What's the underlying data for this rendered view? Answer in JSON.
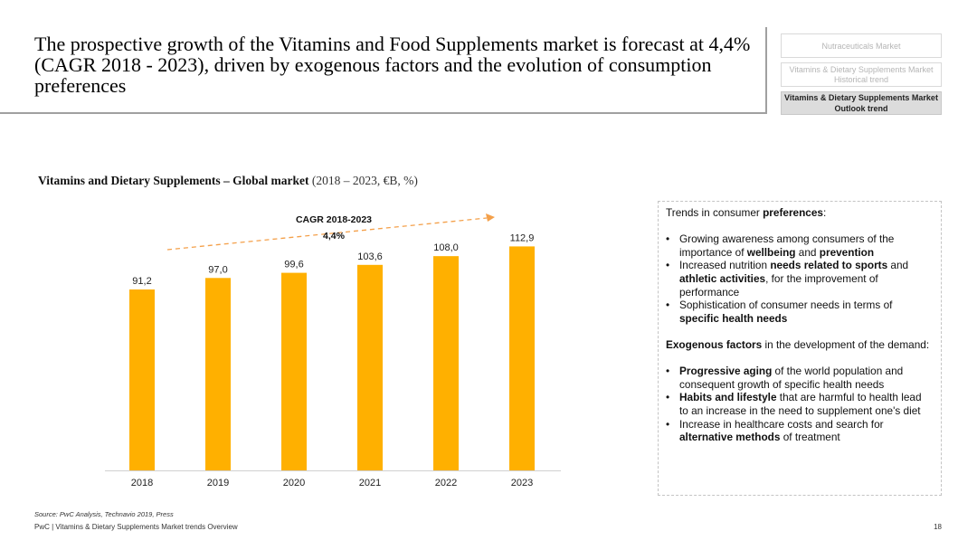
{
  "header": {
    "title": "The prospective growth of the Vitamins and Food Supplements market is forecast at 4,4% (CAGR 2018 - 2023), driven by exogenous factors and the evolution of consumption preferences"
  },
  "nav": {
    "tab1": "Nutraceuticals Market",
    "tab2_line1": "Vitamins & Dietary Supplements Market",
    "tab2_line2": "Historical trend",
    "tab3_line1": "Vitamins & Dietary Supplements Market",
    "tab3_line2": "Outlook trend"
  },
  "chart_title": {
    "bold": "Vitamins and Dietary Supplements – Global market",
    "normal": "(2018 – 2023, €B, %)"
  },
  "chart_data": {
    "type": "bar",
    "categories": [
      "2018",
      "2019",
      "2020",
      "2021",
      "2022",
      "2023"
    ],
    "values": [
      91.2,
      97.0,
      99.6,
      103.6,
      108.0,
      112.9
    ],
    "value_labels": [
      "91,2",
      "97,0",
      "99,6",
      "103,6",
      "108,0",
      "112,9"
    ],
    "bar_color": "#ffb000",
    "arrow_color": "#f4a04a",
    "annotation_title": "CAGR 2018-2023",
    "annotation_value": "4,4%"
  },
  "trends": {
    "pref_intro_prefix": "Trends in consumer ",
    "pref_intro_bold": "preferences",
    "pref_intro_suffix": ":",
    "pref_items": [
      {
        "a": "Growing awareness among consumers of the importance of ",
        "b": "wellbeing",
        "c": " and ",
        "d": "prevention",
        "e": ""
      },
      {
        "a": "Increased nutrition ",
        "b": "needs related to sports",
        "c": " and ",
        "d": "athletic activities",
        "e": ", for the improvement of performance"
      },
      {
        "a": "Sophistication of consumer needs in terms of ",
        "b": "specific health needs",
        "c": "",
        "d": "",
        "e": ""
      }
    ],
    "exo_intro_bold": "Exogenous factors",
    "exo_intro_rest": " in the development of the demand:",
    "exo_items": [
      {
        "a": "",
        "b": "Progressive aging",
        "c": " of the world population and consequent growth of specific health needs"
      },
      {
        "a": "",
        "b": "Habits and lifestyle",
        "c": " that are harmful to health lead to an increase in the need to supplement one's diet"
      },
      {
        "a": "Increase in healthcare costs and search for ",
        "b": "alternative methods",
        "c": " of treatment"
      }
    ]
  },
  "footer": {
    "source": "Source: PwC Analysis, Technavio 2019, Press",
    "text": "PwC | Vitamins & Dietary Supplements Market trends Overview",
    "page": "18"
  }
}
